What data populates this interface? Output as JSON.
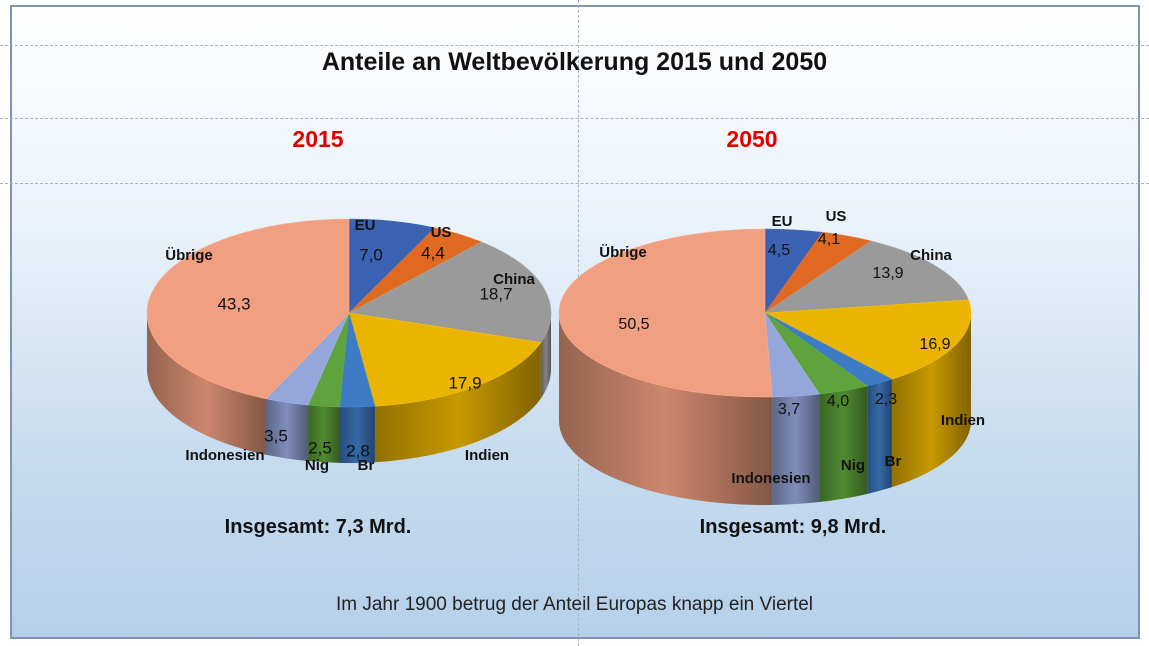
{
  "title": "Anteile an Weltbevölkerung 2015 und 2050",
  "note": "Im Jahr 1900  betrug der Anteil Europas knapp ein Viertel",
  "chart_data": [
    {
      "type": "pie",
      "year": "2015",
      "total": "Insgesamt: 7,3 Mrd.",
      "slices": [
        {
          "key": "eu",
          "label": "EU",
          "value": 7.0,
          "display": "7,0",
          "color": "#3a63b3"
        },
        {
          "key": "us",
          "label": "US",
          "value": 4.4,
          "display": "4,4",
          "color": "#e06a22"
        },
        {
          "key": "china",
          "label": "China",
          "value": 18.7,
          "display": "18,7",
          "color": "#9a9a9a"
        },
        {
          "key": "indien",
          "label": "Indien",
          "value": 17.9,
          "display": "17,9",
          "color": "#eab400"
        },
        {
          "key": "br",
          "label": "Br",
          "value": 2.8,
          "display": "2,8",
          "color": "#3d7cc4"
        },
        {
          "key": "nig",
          "label": "Nig",
          "value": 2.5,
          "display": "2,5",
          "color": "#5ea33b"
        },
        {
          "key": "indonesien",
          "label": "Indonesien",
          "value": 3.5,
          "display": "3,5",
          "color": "#94a6da"
        },
        {
          "key": "uebrige",
          "label": "Übrige",
          "value": 43.3,
          "display": "43,3",
          "color": "#f09f80"
        }
      ]
    },
    {
      "type": "pie",
      "year": "2050",
      "total": "Insgesamt: 9,8 Mrd.",
      "slices": [
        {
          "key": "eu",
          "label": "EU",
          "value": 4.5,
          "display": "4,5",
          "color": "#3a63b3"
        },
        {
          "key": "us",
          "label": "US",
          "value": 4.1,
          "display": "4,1",
          "color": "#e06a22"
        },
        {
          "key": "china",
          "label": "China",
          "value": 13.9,
          "display": "13,9",
          "color": "#9a9a9a"
        },
        {
          "key": "indien",
          "label": "Indien",
          "value": 16.9,
          "display": "16,9",
          "color": "#eab400"
        },
        {
          "key": "br",
          "label": "Br",
          "value": 2.3,
          "display": "2,3",
          "color": "#3d7cc4"
        },
        {
          "key": "nig",
          "label": "Nig",
          "value": 4.0,
          "display": "4,0",
          "color": "#5ea33b"
        },
        {
          "key": "indonesien",
          "label": "Indonesien",
          "value": 3.7,
          "display": "3,7",
          "color": "#94a6da"
        },
        {
          "key": "uebrige",
          "label": "Übrige",
          "value": 50.5,
          "display": "50,5",
          "color": "#f09f80"
        }
      ]
    }
  ]
}
